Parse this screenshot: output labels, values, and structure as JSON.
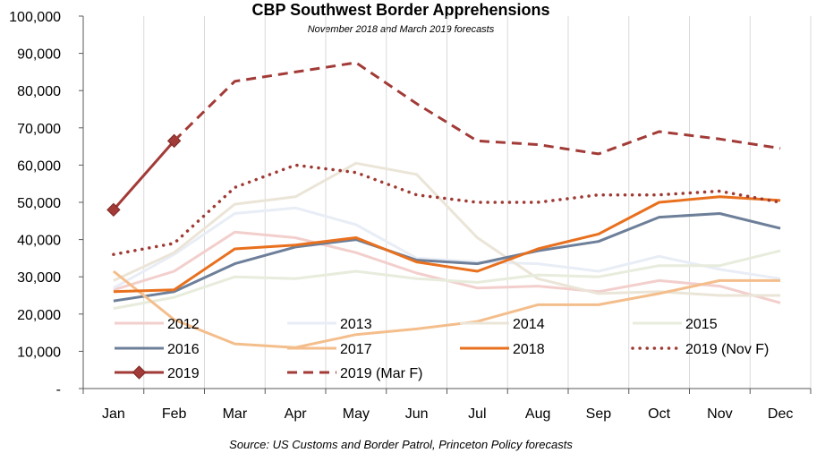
{
  "chart_data": {
    "type": "line",
    "title": "CBP Southwest Border Apprehensions",
    "subtitle": "November 2018 and March 2019 forecasts",
    "source": "Source: US Customs and Border Patrol, Princeton Policy forecasts",
    "categories": [
      "Jan",
      "Feb",
      "Mar",
      "Apr",
      "May",
      "Jun",
      "Jul",
      "Aug",
      "Sep",
      "Oct",
      "Nov",
      "Dec"
    ],
    "ylim": [
      0,
      100000
    ],
    "yticks": [
      0,
      10000,
      20000,
      30000,
      40000,
      50000,
      60000,
      70000,
      80000,
      90000,
      100000
    ],
    "ytick_labels": [
      "-",
      "10,000",
      "20,000",
      "30,000",
      "40,000",
      "50,000",
      "60,000",
      "70,000",
      "80,000",
      "90,000",
      "100,000"
    ],
    "grid": "vertical",
    "legend_position": "bottom-inside",
    "series": [
      {
        "name": "2012",
        "color": "#f2cfcc",
        "width": 3,
        "dash": "solid",
        "values": [
          26500,
          31500,
          42000,
          40500,
          36500,
          31000,
          27000,
          27500,
          26000,
          29000,
          27500,
          23000
        ]
      },
      {
        "name": "2013",
        "color": "#e8edf6",
        "width": 3,
        "dash": "solid",
        "values": [
          27000,
          36000,
          47000,
          48500,
          44000,
          35000,
          34000,
          33500,
          31500,
          35500,
          32000,
          29500
        ]
      },
      {
        "name": "2014",
        "color": "#ebe5d8",
        "width": 3,
        "dash": "solid",
        "values": [
          29000,
          36500,
          49500,
          51500,
          60500,
          57500,
          40500,
          29500,
          25500,
          26000,
          25000,
          25000
        ]
      },
      {
        "name": "2015",
        "color": "#e7ecdc",
        "width": 3,
        "dash": "solid",
        "values": [
          21500,
          24500,
          30000,
          29500,
          31500,
          29500,
          28500,
          30500,
          30000,
          33000,
          33000,
          37000
        ]
      },
      {
        "name": "2016",
        "color": "#6d7f99",
        "width": 3,
        "dash": "solid",
        "values": [
          23500,
          26000,
          33500,
          38000,
          40000,
          34500,
          33500,
          37000,
          39500,
          46000,
          47000,
          43000
        ]
      },
      {
        "name": "2017",
        "color": "#f4be8c",
        "width": 3,
        "dash": "solid",
        "values": [
          31500,
          18500,
          12000,
          11000,
          14500,
          16000,
          18000,
          22500,
          22500,
          25500,
          29000,
          29000
        ]
      },
      {
        "name": "2018",
        "color": "#e8701e",
        "width": 3,
        "dash": "solid",
        "values": [
          26000,
          26500,
          37500,
          38500,
          40500,
          34000,
          31500,
          37500,
          41500,
          50000,
          51500,
          50500
        ]
      },
      {
        "name": "2019 (Nov F)",
        "color": "#9e3a34",
        "width": 3.5,
        "dash": "dotted",
        "values": [
          36000,
          39000,
          54000,
          60000,
          58000,
          52000,
          50000,
          50000,
          52000,
          52000,
          53000,
          50000
        ]
      },
      {
        "name": "2019",
        "color": "#a23b37",
        "width": 3,
        "dash": "solid",
        "marker": "diamond",
        "values": [
          48000,
          66500,
          null,
          null,
          null,
          null,
          null,
          null,
          null,
          null,
          null,
          null
        ]
      },
      {
        "name": "2019 (Mar F)",
        "color": "#a23b37",
        "width": 3,
        "dash": "dashed",
        "values": [
          null,
          66500,
          82500,
          85000,
          87500,
          76500,
          66500,
          65500,
          63000,
          69000,
          67000,
          64500
        ]
      }
    ]
  }
}
